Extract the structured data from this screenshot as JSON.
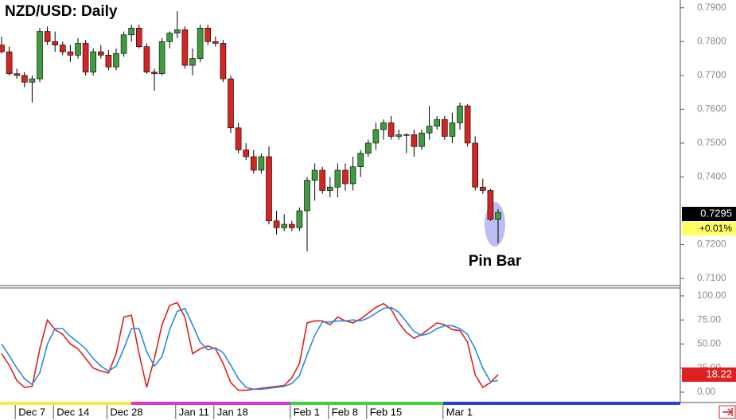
{
  "chart_data": [
    {
      "type": "candlestick",
      "title": "NZD/USD: Daily",
      "annotation": "Pin Bar",
      "change_label": "+0.01%",
      "up_color": "#3e9b3e",
      "down_color": "#d42424",
      "categories": [
        null,
        null,
        "Dec 7",
        null,
        null,
        null,
        null,
        "Dec 14",
        null,
        null,
        null,
        null,
        null,
        null,
        "Dec 28",
        null,
        null,
        null,
        null,
        null,
        null,
        null,
        null,
        "Jan 11",
        null,
        null,
        null,
        null,
        "Jan 18",
        null,
        null,
        null,
        null,
        null,
        null,
        null,
        null,
        null,
        "Feb 1",
        null,
        null,
        null,
        null,
        "Feb 8",
        null,
        null,
        null,
        null,
        "Feb 15",
        null,
        null,
        null,
        null,
        null,
        null,
        null,
        null,
        null,
        "Mar 1",
        null,
        null,
        null,
        null,
        null,
        null,
        null
      ],
      "open": [
        0.779,
        0.777,
        0.7705,
        0.77,
        0.768,
        0.769,
        0.783,
        0.78,
        0.779,
        0.777,
        0.776,
        0.7795,
        0.771,
        0.777,
        0.776,
        0.7725,
        0.7765,
        0.782,
        0.784,
        0.7785,
        0.771,
        0.7705,
        0.78,
        0.7825,
        0.7835,
        0.773,
        0.775,
        0.784,
        0.78,
        0.7795,
        0.769,
        0.7545,
        0.748,
        0.746,
        0.742,
        0.746,
        0.727,
        0.725,
        0.726,
        0.725,
        0.73,
        0.739,
        0.742,
        0.736,
        0.737,
        0.742,
        0.738,
        0.743,
        0.747,
        0.75,
        0.754,
        0.756,
        0.752,
        0.7525,
        0.7525,
        0.749,
        0.753,
        0.755,
        0.757,
        0.752,
        0.756,
        0.761,
        0.75,
        0.737,
        0.736,
        0.7275
      ],
      "high": [
        0.7815,
        0.7785,
        0.772,
        0.771,
        0.77,
        0.784,
        0.7845,
        0.783,
        0.78,
        0.779,
        0.781,
        0.7805,
        0.778,
        0.779,
        0.7775,
        0.778,
        0.783,
        0.785,
        0.785,
        0.7795,
        0.772,
        0.781,
        0.783,
        0.789,
        0.7845,
        0.778,
        0.785,
        0.785,
        0.7815,
        0.7805,
        0.77,
        0.756,
        0.75,
        0.748,
        0.747,
        0.749,
        0.73,
        0.729,
        0.727,
        0.731,
        0.74,
        0.744,
        0.743,
        0.74,
        0.744,
        0.744,
        0.746,
        0.748,
        0.751,
        0.756,
        0.757,
        0.758,
        0.754,
        0.753,
        0.754,
        0.754,
        0.761,
        0.758,
        0.758,
        0.759,
        0.762,
        0.7615,
        0.752,
        0.7395,
        0.7365,
        0.7305
      ],
      "low": [
        0.7765,
        0.77,
        0.769,
        0.7665,
        0.762,
        0.768,
        0.779,
        0.777,
        0.776,
        0.774,
        0.775,
        0.77,
        0.77,
        0.775,
        0.7715,
        0.7715,
        0.7755,
        0.78,
        0.778,
        0.7705,
        0.7655,
        0.77,
        0.778,
        0.781,
        0.772,
        0.77,
        0.774,
        0.779,
        0.7785,
        0.768,
        0.753,
        0.747,
        0.745,
        0.741,
        0.741,
        0.726,
        0.723,
        0.724,
        0.724,
        0.724,
        0.718,
        0.733,
        0.735,
        0.734,
        0.734,
        0.736,
        0.736,
        0.74,
        0.746,
        0.748,
        0.751,
        0.751,
        0.751,
        0.747,
        0.746,
        0.748,
        0.751,
        0.754,
        0.751,
        0.75,
        0.754,
        0.749,
        0.736,
        0.735,
        0.727,
        0.7205
      ],
      "close": [
        0.777,
        0.7705,
        0.77,
        0.768,
        0.769,
        0.783,
        0.78,
        0.779,
        0.777,
        0.776,
        0.7795,
        0.771,
        0.777,
        0.776,
        0.7725,
        0.7765,
        0.782,
        0.784,
        0.7785,
        0.771,
        0.7705,
        0.78,
        0.7825,
        0.7835,
        0.773,
        0.775,
        0.784,
        0.78,
        0.7795,
        0.769,
        0.7545,
        0.748,
        0.746,
        0.742,
        0.746,
        0.727,
        0.725,
        0.726,
        0.725,
        0.73,
        0.739,
        0.742,
        0.736,
        0.737,
        0.742,
        0.738,
        0.743,
        0.747,
        0.75,
        0.754,
        0.756,
        0.752,
        0.7525,
        0.7525,
        0.749,
        0.753,
        0.755,
        0.757,
        0.752,
        0.756,
        0.761,
        0.75,
        0.737,
        0.736,
        0.7275,
        0.7295
      ],
      "ylim": [
        0.7079,
        0.7923
      ],
      "yticks": [
        {
          "value": 0.79,
          "label": "0.7900"
        },
        {
          "value": 0.78,
          "label": "0.7800"
        },
        {
          "value": 0.77,
          "label": "0.7700"
        },
        {
          "value": 0.76,
          "label": "0.7600"
        },
        {
          "value": 0.75,
          "label": "0.7500"
        },
        {
          "value": 0.74,
          "label": "0.7400"
        },
        {
          "value": 0.72,
          "label": "0.7200"
        },
        {
          "value": 0.71,
          "label": "0.7100"
        }
      ]
    },
    {
      "type": "line",
      "series": [
        {
          "name": "%K",
          "color": "#e02020",
          "values": [
            40,
            28,
            12,
            5,
            6,
            45,
            75,
            65,
            60,
            50,
            45,
            35,
            25,
            22,
            20,
            40,
            78,
            80,
            40,
            5,
            35,
            70,
            90,
            93,
            78,
            40,
            45,
            48,
            45,
            30,
            10,
            2,
            2,
            3,
            4,
            5,
            6,
            7,
            15,
            30,
            72,
            74,
            74,
            70,
            78,
            74,
            72,
            76,
            82,
            88,
            92,
            86,
            72,
            62,
            56,
            60,
            66,
            72,
            70,
            65,
            64,
            52,
            18,
            5,
            10,
            18.22
          ]
        },
        {
          "name": "%D",
          "color": "#2a8ae0",
          "values": [
            50,
            38,
            25,
            14,
            8,
            20,
            50,
            66,
            66,
            58,
            52,
            45,
            35,
            27,
            22,
            27,
            45,
            66,
            66,
            42,
            27,
            37,
            65,
            84,
            87,
            70,
            52,
            44,
            46,
            41,
            28,
            14,
            5,
            3,
            3,
            4,
            5,
            6,
            9,
            17,
            39,
            59,
            73,
            73,
            74,
            74,
            75,
            74,
            77,
            82,
            87,
            88,
            83,
            73,
            63,
            59,
            61,
            66,
            69,
            69,
            66,
            60,
            45,
            25,
            11,
            12
          ]
        }
      ],
      "ylim": [
        -9.9,
        107.4
      ],
      "yticks": [
        {
          "value": 100,
          "label": "100.00"
        },
        {
          "value": 75,
          "label": "75.00"
        },
        {
          "value": 50,
          "label": "50.00"
        },
        {
          "value": 25,
          "label": "25.00"
        },
        {
          "value": 0,
          "label": "0.00"
        }
      ]
    }
  ]
}
